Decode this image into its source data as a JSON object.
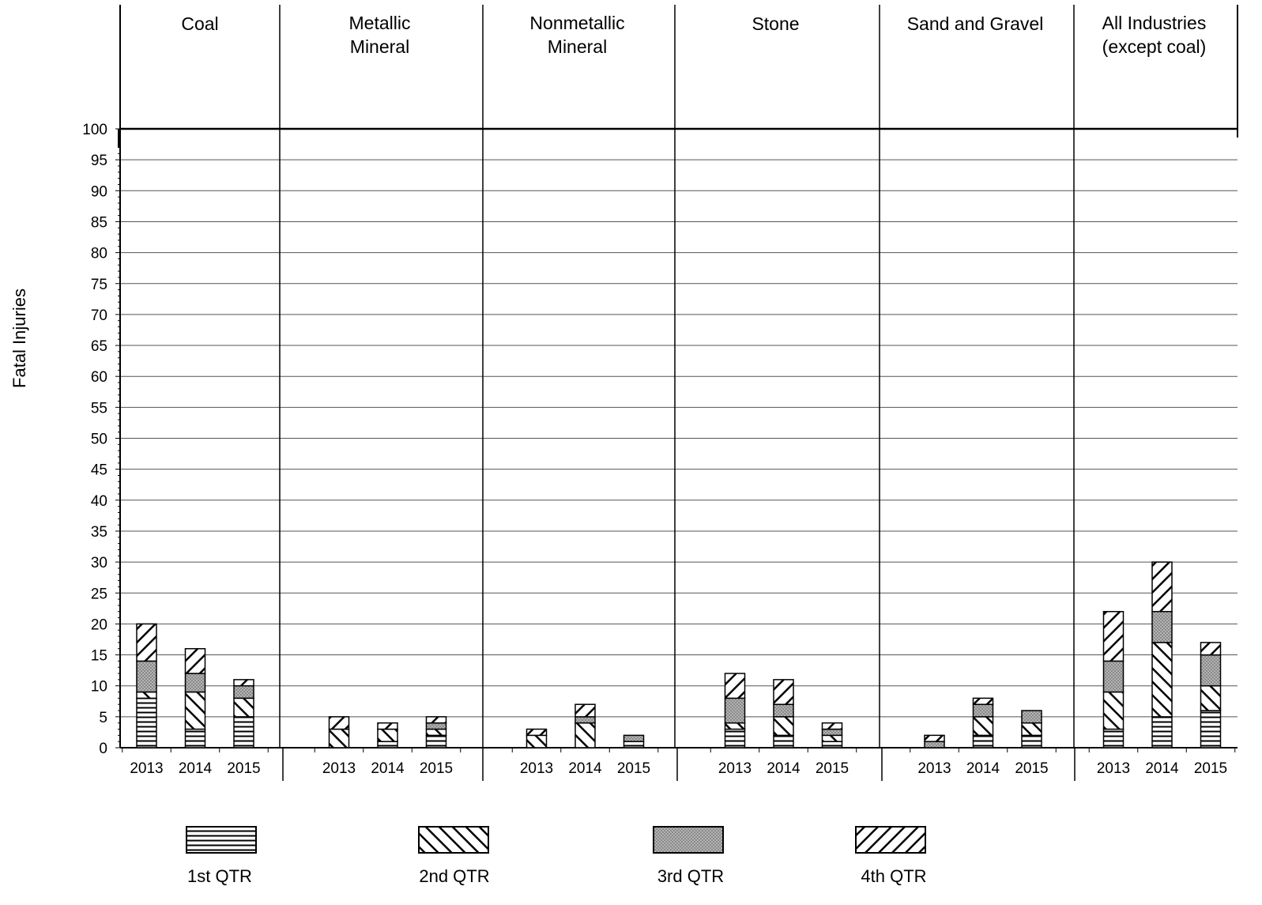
{
  "chart_data": {
    "type": "bar",
    "stacked": true,
    "ylabel": "Fatal Injuries",
    "ylim": [
      0,
      100
    ],
    "yticks": [
      0,
      5,
      10,
      15,
      20,
      25,
      30,
      35,
      40,
      45,
      50,
      55,
      60,
      65,
      70,
      75,
      80,
      85,
      90,
      95,
      100
    ],
    "grid": true,
    "legend_position": "bottom",
    "series": [
      {
        "name": "1st QTR",
        "pattern": "horizontal-lines"
      },
      {
        "name": "2nd QTR",
        "pattern": "backslash-diagonal"
      },
      {
        "name": "3rd QTR",
        "pattern": "dotted-gray"
      },
      {
        "name": "4th QTR",
        "pattern": "forward-diagonal"
      }
    ],
    "groups": [
      {
        "title_lines": [
          "Coal"
        ],
        "years": [
          "2013",
          "2014",
          "2015"
        ],
        "values": [
          [
            8,
            1,
            5,
            6
          ],
          [
            3,
            6,
            3,
            4
          ],
          [
            5,
            3,
            2,
            1
          ]
        ]
      },
      {
        "title_lines": [
          "Metallic",
          "Mineral"
        ],
        "years": [
          "2013",
          "2014",
          "2015"
        ],
        "values": [
          [
            0,
            3,
            0,
            2
          ],
          [
            1,
            2,
            0,
            1
          ],
          [
            2,
            1,
            1,
            1
          ]
        ]
      },
      {
        "title_lines": [
          "Nonmetallic",
          "Mineral"
        ],
        "years": [
          "2013",
          "2014",
          "2015"
        ],
        "values": [
          [
            0,
            2,
            0,
            1
          ],
          [
            0,
            4,
            1,
            2
          ],
          [
            1,
            0,
            1,
            0
          ]
        ]
      },
      {
        "title_lines": [
          "Stone"
        ],
        "years": [
          "2013",
          "2014",
          "2015"
        ],
        "values": [
          [
            3,
            1,
            4,
            4
          ],
          [
            2,
            3,
            2,
            4
          ],
          [
            1,
            1,
            1,
            1
          ]
        ]
      },
      {
        "title_lines": [
          "Sand and Gravel"
        ],
        "years": [
          "2013",
          "2014",
          "2015"
        ],
        "values": [
          [
            0,
            0,
            1,
            1
          ],
          [
            2,
            3,
            2,
            1
          ],
          [
            2,
            2,
            2,
            0
          ]
        ]
      },
      {
        "title_lines": [
          "All Industries",
          "(except coal)"
        ],
        "years": [
          "2013",
          "2014",
          "2015"
        ],
        "values": [
          [
            3,
            6,
            5,
            8
          ],
          [
            5,
            12,
            5,
            8
          ],
          [
            6,
            4,
            5,
            2
          ]
        ]
      }
    ]
  },
  "legend": {
    "q1": "1st QTR",
    "q2": "2nd QTR",
    "q3": "3rd QTR",
    "q4": "4th QTR"
  }
}
